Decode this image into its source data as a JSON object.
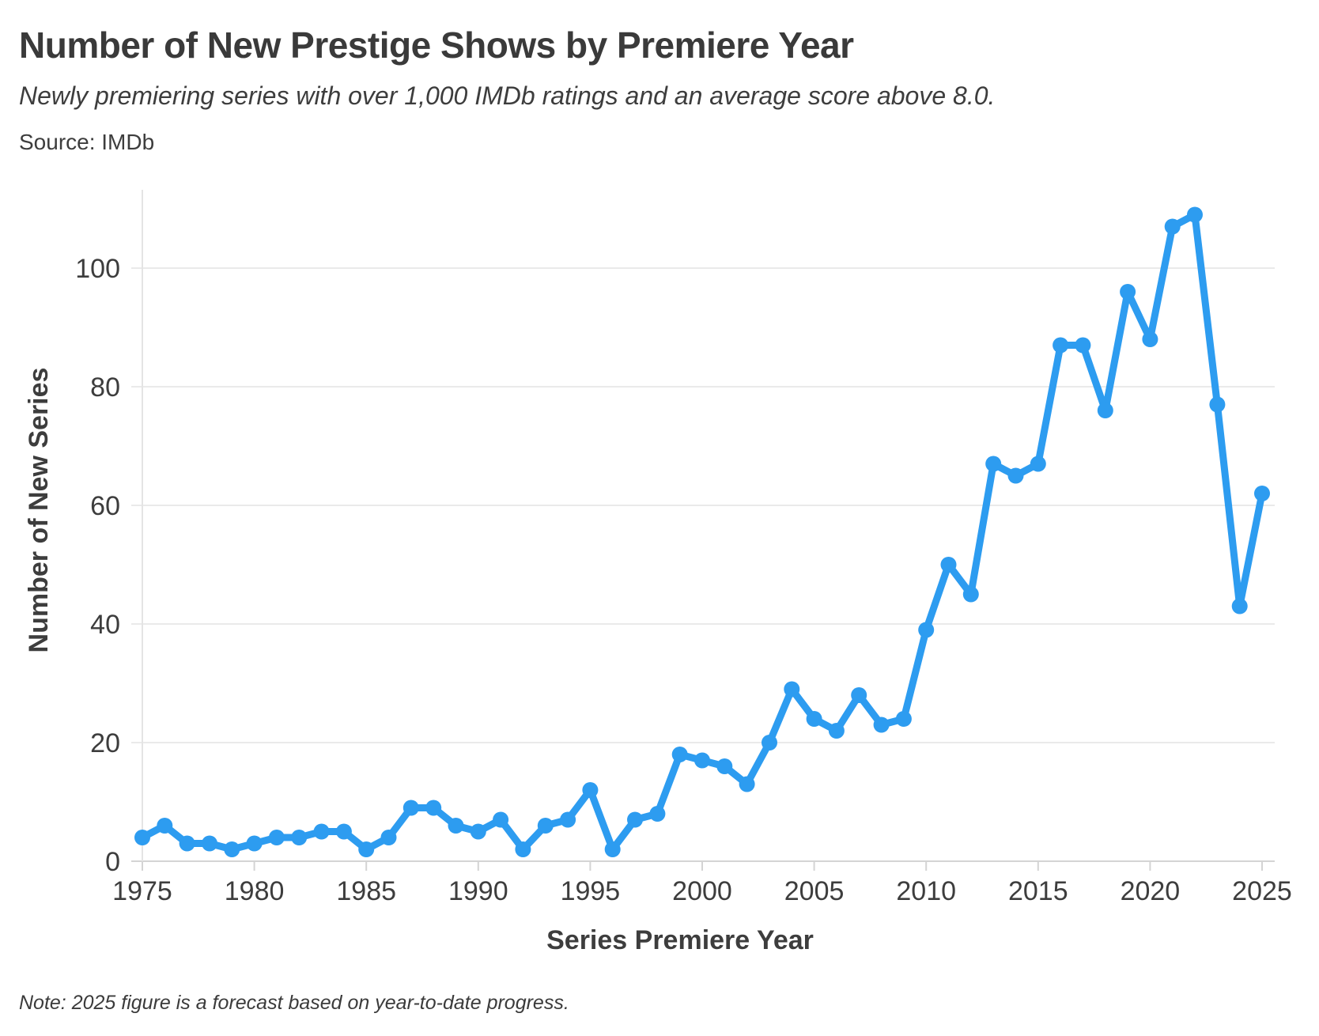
{
  "header": {
    "title": "Number of New Prestige Shows by Premiere Year",
    "subtitle": "Newly premiering series with over 1,000 IMDb ratings and an average score above 8.0.",
    "source": "Source: IMDb"
  },
  "footer": {
    "note": "Note: 2025 figure is a forecast based on year-to-date progress."
  },
  "chart_data": {
    "type": "line",
    "title": "Number of New Prestige Shows by Premiere Year",
    "subtitle": "Newly premiering series with over 1,000 IMDb ratings and an average score above 8.0.",
    "source": "Source: IMDb",
    "note": "Note: 2025 figure is a forecast based on year-to-date progress.",
    "xlabel": "Series Premiere Year",
    "ylabel": "Number of New Series",
    "x": [
      1975,
      1976,
      1977,
      1978,
      1979,
      1980,
      1981,
      1982,
      1983,
      1984,
      1985,
      1986,
      1987,
      1988,
      1989,
      1990,
      1991,
      1992,
      1993,
      1994,
      1995,
      1996,
      1997,
      1998,
      1999,
      2000,
      2001,
      2002,
      2003,
      2004,
      2005,
      2006,
      2007,
      2008,
      2009,
      2010,
      2011,
      2012,
      2013,
      2014,
      2015,
      2016,
      2017,
      2018,
      2019,
      2020,
      2021,
      2022,
      2023,
      2024,
      2025
    ],
    "values": [
      4,
      6,
      3,
      3,
      2,
      3,
      4,
      4,
      5,
      5,
      2,
      4,
      9,
      9,
      6,
      5,
      7,
      2,
      6,
      7,
      12,
      2,
      7,
      8,
      18,
      17,
      16,
      13,
      20,
      29,
      24,
      22,
      28,
      23,
      24,
      39,
      50,
      45,
      67,
      65,
      67,
      87,
      87,
      76,
      96,
      88,
      107,
      109,
      77,
      43,
      62
    ],
    "x_ticks": [
      1975,
      1980,
      1985,
      1990,
      1995,
      2000,
      2005,
      2010,
      2015,
      2020,
      2025
    ],
    "y_ticks": [
      0,
      20,
      40,
      60,
      80,
      100
    ],
    "xlim": [
      1975,
      2025
    ],
    "ylim": [
      0,
      110
    ],
    "grid": true,
    "legend_position": "none",
    "line_color": "#2D9CF0",
    "marker": "circle"
  }
}
